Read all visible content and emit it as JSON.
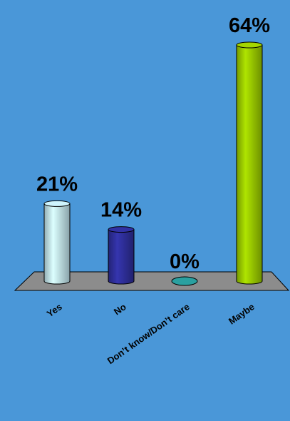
{
  "chart_data": {
    "type": "bar",
    "style": "3d-cylinder",
    "title": "",
    "xlabel": "",
    "ylabel": "",
    "ylim": [
      0,
      64
    ],
    "grid": false,
    "legend": "none",
    "categories": [
      "Yes",
      "No",
      "Don't know/Don't care",
      "Maybe"
    ],
    "values": [
      21,
      14,
      0,
      64
    ],
    "value_labels": [
      "21%",
      "14%",
      "0%",
      "64%"
    ],
    "category_labels": [
      "Yes",
      "No",
      "Don’t know/Don’t care",
      "Maybe"
    ],
    "colors": [
      "#c4e8f1",
      "#2f2f9c",
      "#2aa0a0",
      "#9ccc00"
    ]
  },
  "colors": {
    "background": "#4a97d8",
    "floor": "#8c8c8c"
  }
}
